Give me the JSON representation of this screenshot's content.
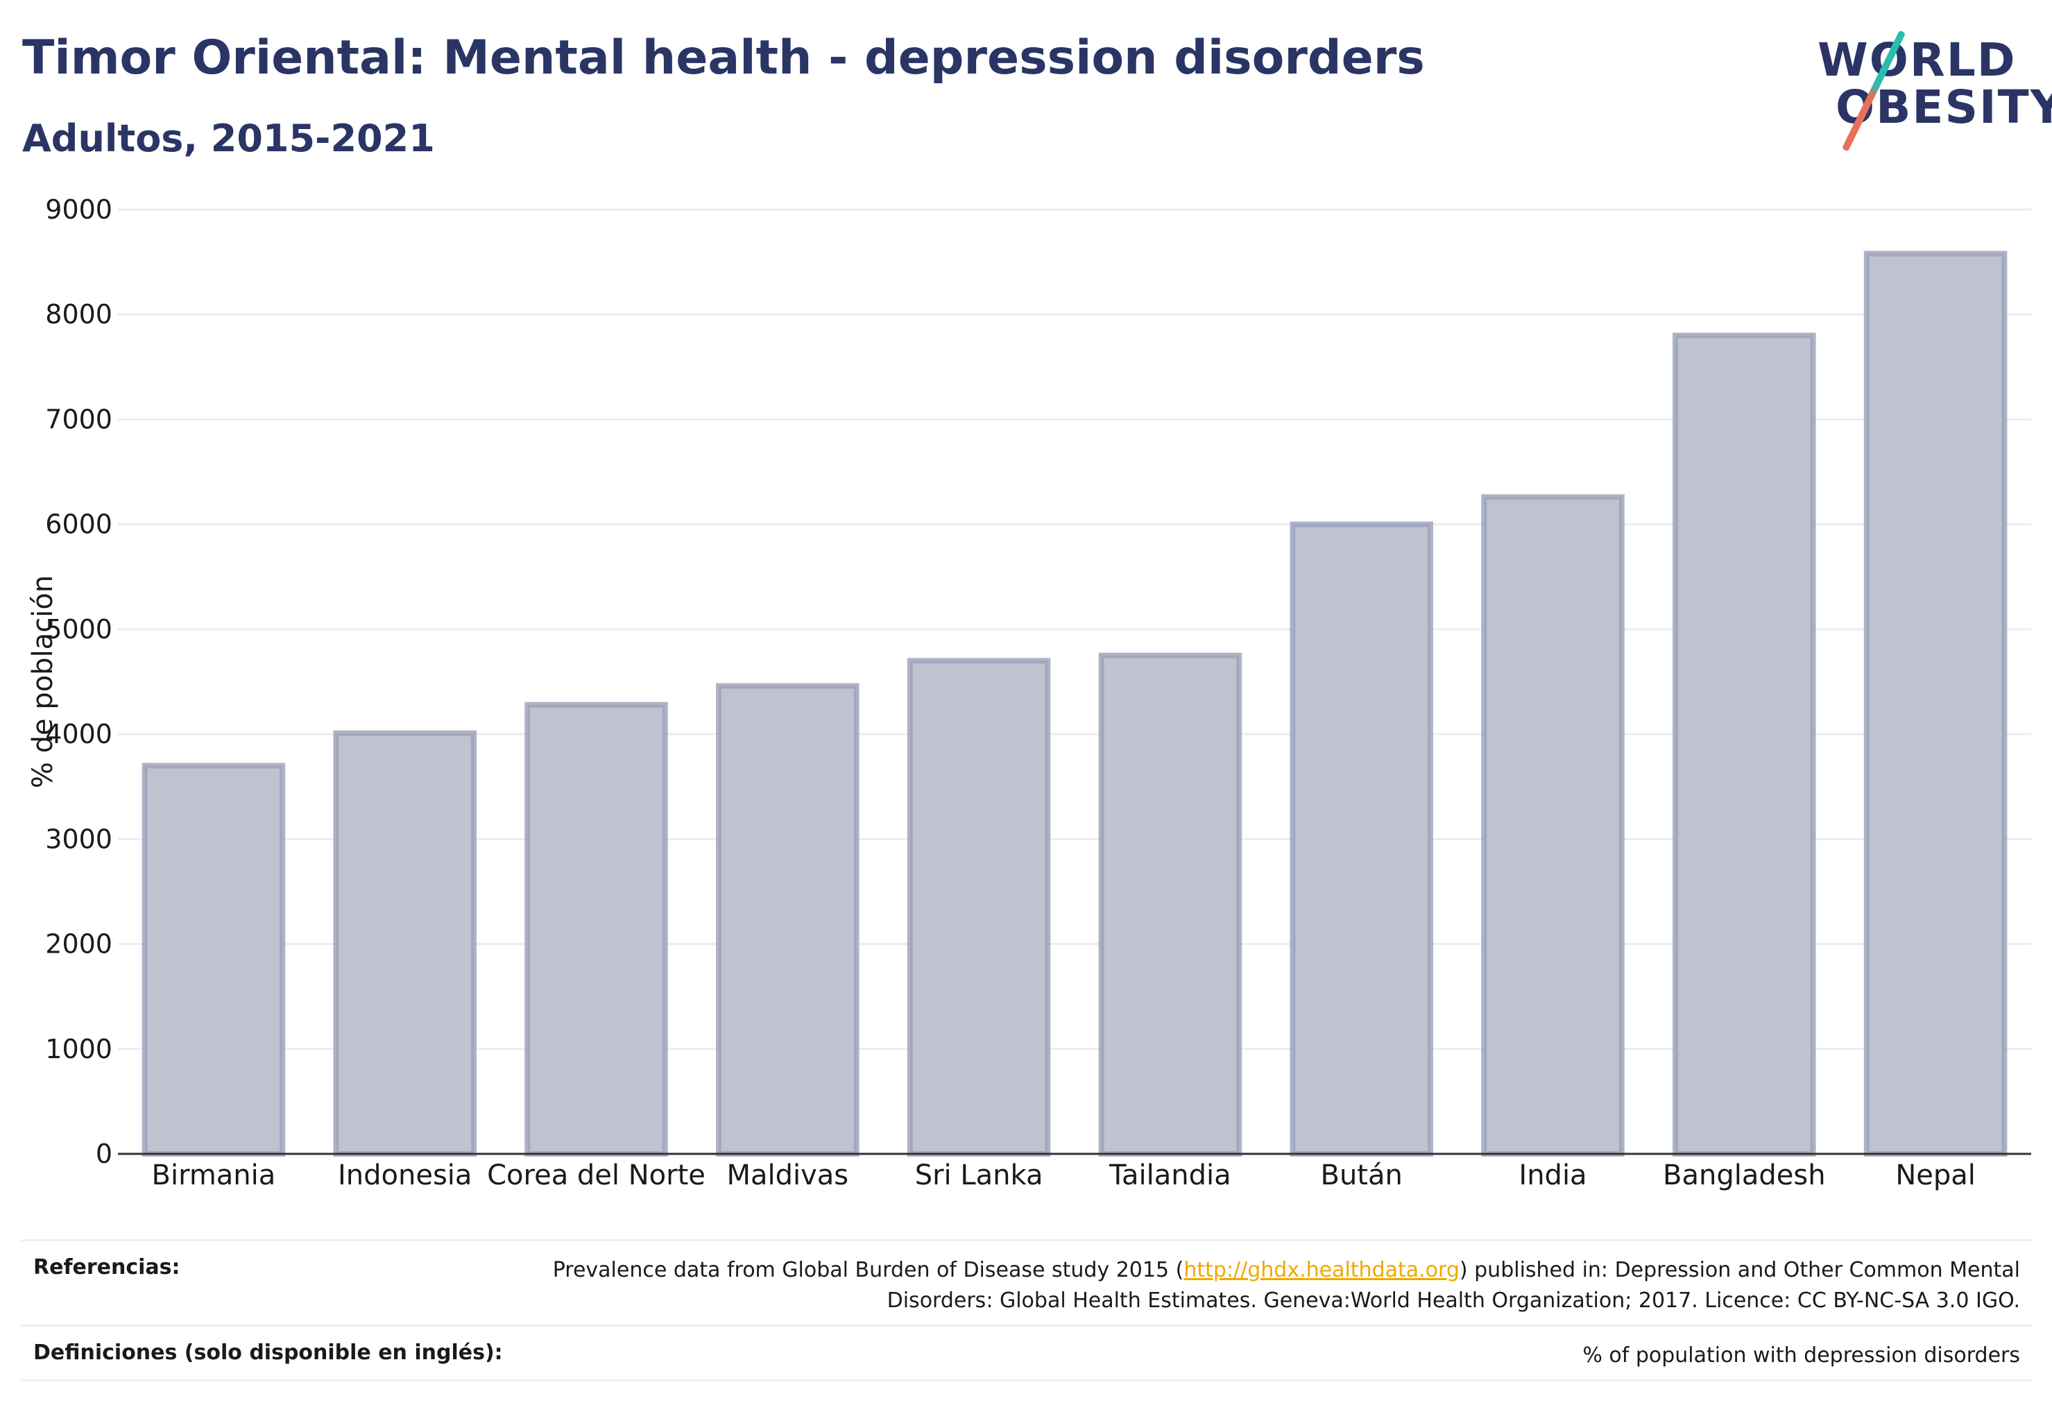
{
  "header": {
    "title": "Timor Oriental: Mental health - depression disorders",
    "subtitle": "Adultos, 2015-2021"
  },
  "logo": {
    "line1": "WORLD",
    "line2": "OBESITY"
  },
  "chart_data": {
    "type": "bar",
    "categories": [
      "Birmania",
      "Indonesia",
      "Corea del Norte",
      "Maldivas",
      "Sri Lanka",
      "Tailandia",
      "Bután",
      "India",
      "Bangladesh",
      "Nepal"
    ],
    "values": [
      3700,
      4010,
      4280,
      4460,
      4700,
      4750,
      6000,
      6260,
      7800,
      8580
    ],
    "ylabel": "% de población",
    "xlabel": "",
    "ylim": [
      0,
      9000
    ],
    "yticks": [
      0,
      1000,
      2000,
      3000,
      4000,
      5000,
      6000,
      7000,
      8000,
      9000
    ],
    "grid": true,
    "colors": {
      "bar_fill": "#c0c3cf",
      "bar_stroke": "#9aa0b8",
      "grid": "#ececf2",
      "axis": "#333333"
    }
  },
  "footer": {
    "references_label": "Referencias:",
    "references_pre": "Prevalence data from Global Burden of Disease study 2015 (",
    "references_link": "http://ghdx.healthdata.org",
    "references_post": ") published in: Depression and Other Common Mental Disorders: Global Health Estimates. Geneva:World Health Organization; 2017. Licence: CC BY-NC-SA 3.0 IGO.",
    "definitions_label": "Definiciones (solo disponible en inglés):",
    "definitions_text": "% of population with depression disorders"
  }
}
